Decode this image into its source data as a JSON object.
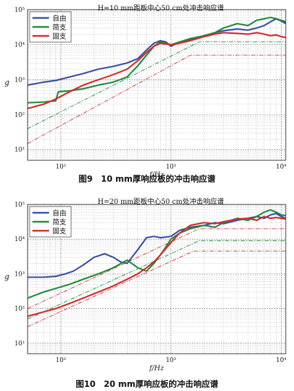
{
  "captions": {
    "fig9": "图9　10 mm厚响应板的冲击响应谱",
    "fig10": "图10　20 mm厚响应板的冲击响应谱"
  },
  "colors": {
    "free": "#3a4fa3",
    "simply_supported": "#1d8a3a",
    "fixed": "#d42a2a"
  },
  "chart_data": [
    {
      "type": "line",
      "title": "H=10 mm距板中心50 cm处冲击响应谱",
      "xlabel": "f/Hz",
      "ylabel": "g",
      "x_scale": "log",
      "y_scale": "log",
      "xlim": [
        50,
        11000
      ],
      "ylim": [
        5,
        100000
      ],
      "x_ticks": [
        "10^2",
        "10^3",
        "10^4"
      ],
      "y_ticks": [
        "10^1",
        "10^2",
        "10^3",
        "10^4",
        "10^5"
      ],
      "grid": true,
      "legend": "top-left",
      "legend_labels": [
        "自由",
        "简支",
        "固支"
      ],
      "series": [
        {
          "name": "自由",
          "color": "#3a4fa3",
          "x": [
            50,
            70,
            90,
            120,
            160,
            220,
            300,
            400,
            500,
            600,
            700,
            800,
            900,
            1000,
            1200,
            1500,
            2000,
            2500,
            3000,
            4000,
            5000,
            6000,
            7000,
            8000,
            9000,
            10000,
            11000
          ],
          "y": [
            700,
            850,
            950,
            1200,
            1500,
            2000,
            2400,
            3000,
            4000,
            7000,
            11000,
            13000,
            12000,
            9000,
            12000,
            14000,
            18000,
            22000,
            25000,
            28000,
            26000,
            30000,
            35000,
            45000,
            55000,
            48000,
            40000
          ]
        },
        {
          "name": "简支",
          "color": "#1d8a3a",
          "x": [
            50,
            70,
            90,
            95,
            120,
            160,
            220,
            300,
            400,
            500,
            600,
            700,
            800,
            900,
            1000,
            1200,
            1500,
            2000,
            2500,
            3000,
            4000,
            5000,
            6000,
            7000,
            8000,
            9000,
            10000,
            11000
          ],
          "y": [
            220,
            230,
            250,
            450,
            480,
            550,
            700,
            850,
            1200,
            2500,
            5000,
            9000,
            12000,
            11000,
            10000,
            12000,
            15000,
            18000,
            22000,
            30000,
            40000,
            35000,
            50000,
            55000,
            60000,
            55000,
            50000,
            45000
          ]
        },
        {
          "name": "固支",
          "color": "#d42a2a",
          "x": [
            50,
            70,
            90,
            120,
            160,
            220,
            300,
            400,
            500,
            600,
            700,
            800,
            1000,
            1200,
            1500,
            2000,
            2500,
            3000,
            4000,
            5000,
            6000,
            7000,
            8000,
            9000,
            10000,
            11000
          ],
          "y": [
            150,
            200,
            280,
            450,
            700,
            1000,
            1400,
            2000,
            3500,
            6000,
            9000,
            11000,
            10000,
            11000,
            13000,
            17000,
            20000,
            22000,
            21000,
            20000,
            22000,
            20000,
            18000,
            19000,
            17000,
            16000
          ]
        }
      ],
      "reference_lines": [
        {
          "color": "#1d8a3a",
          "style": "dash-dot",
          "x": [
            50,
            1800,
            11000
          ],
          "y": [
            40,
            12000,
            12000
          ]
        },
        {
          "color": "#d42a2a",
          "style": "dash-dot",
          "x": [
            50,
            1500,
            11000
          ],
          "y": [
            15,
            5000,
            5000
          ]
        }
      ]
    },
    {
      "type": "line",
      "title": "H=20 mm距板中心50 cm处冲击响应谱",
      "xlabel": "f/Hz",
      "ylabel": "g",
      "x_scale": "log",
      "y_scale": "log",
      "xlim": [
        50,
        11000
      ],
      "ylim": [
        5,
        100000
      ],
      "x_ticks": [
        "10^2",
        "10^3",
        "10^4"
      ],
      "y_ticks": [
        "10^1",
        "10^2",
        "10^3",
        "10^4",
        "10^5"
      ],
      "grid": true,
      "legend": "top-left",
      "legend_labels": [
        "自由",
        "简支",
        "固支"
      ],
      "series": [
        {
          "name": "自由",
          "color": "#3a4fa3",
          "x": [
            50,
            70,
            90,
            110,
            130,
            160,
            200,
            250,
            300,
            350,
            400,
            500,
            600,
            700,
            800,
            1000,
            1200,
            1500,
            2000,
            2500,
            3000,
            4000,
            5000,
            6000,
            7000,
            8000,
            9000,
            10000,
            11000
          ],
          "y": [
            800,
            800,
            850,
            1000,
            1200,
            1800,
            3000,
            3800,
            3000,
            2200,
            2000,
            5000,
            11000,
            12000,
            11000,
            12000,
            18000,
            22000,
            25000,
            30000,
            28000,
            35000,
            40000,
            45000,
            40000,
            50000,
            55000,
            45000,
            40000
          ]
        },
        {
          "name": "简支",
          "color": "#1d8a3a",
          "x": [
            50,
            70,
            90,
            120,
            160,
            220,
            300,
            400,
            500,
            600,
            700,
            800,
            900,
            1000,
            1200,
            1500,
            2000,
            2500,
            3000,
            4000,
            5000,
            6000,
            7000,
            8000,
            9000,
            10000,
            11000
          ],
          "y": [
            200,
            300,
            380,
            500,
            700,
            1000,
            1500,
            2500,
            1500,
            1200,
            2000,
            3500,
            6000,
            10000,
            15000,
            20000,
            25000,
            22000,
            30000,
            40000,
            35000,
            45000,
            60000,
            70000,
            60000,
            50000,
            48000
          ]
        },
        {
          "name": "固支",
          "color": "#d42a2a",
          "x": [
            50,
            70,
            90,
            120,
            160,
            220,
            300,
            400,
            500,
            600,
            700,
            800,
            1000,
            1200,
            1500,
            2000,
            2500,
            3000,
            4000,
            5000,
            6000,
            7000,
            8000,
            9000,
            10000,
            11000
          ],
          "y": [
            60,
            80,
            100,
            140,
            200,
            300,
            450,
            700,
            1000,
            1500,
            2200,
            3500,
            8000,
            15000,
            25000,
            30000,
            28000,
            32000,
            38000,
            40000,
            35000,
            45000,
            40000,
            42000,
            40000,
            38000
          ]
        }
      ],
      "reference_lines": [
        {
          "color": "#d42a2a",
          "style": "dash-dot",
          "x": [
            50,
            1800,
            11000
          ],
          "y": [
            100,
            20000,
            20000
          ]
        },
        {
          "color": "#1d8a3a",
          "style": "dash-dot",
          "x": [
            50,
            1800,
            11000
          ],
          "y": [
            50,
            9000,
            9000
          ]
        },
        {
          "color": "#d42a2a",
          "style": "dash-dot",
          "x": [
            50,
            1600,
            11000
          ],
          "y": [
            30,
            4500,
            4500
          ]
        }
      ]
    }
  ]
}
